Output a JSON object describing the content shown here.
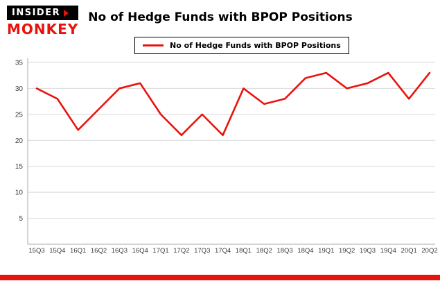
{
  "header": {
    "logo": {
      "top": "INSIDER",
      "bottom": "MONKEY"
    },
    "title": "No of Hedge Funds with BPOP Positions"
  },
  "legend": {
    "label": "No of Hedge Funds with BPOP Positions"
  },
  "colors": {
    "line": "#e8130c",
    "footer_bar": "#e8130c",
    "logo_red": "#e8130c",
    "grid": "#d9d9d9",
    "axis": "#aaaaaa",
    "tick_text": "#3c3c3c"
  },
  "chart_data": {
    "type": "line",
    "title": "No of Hedge Funds with BPOP Positions",
    "legend_entries": [
      "No of Hedge Funds with BPOP Positions"
    ],
    "legend_position": "top-center",
    "grid": true,
    "categories": [
      "15Q3",
      "15Q4",
      "16Q1",
      "16Q2",
      "16Q3",
      "16Q4",
      "17Q1",
      "17Q2",
      "17Q3",
      "17Q4",
      "18Q1",
      "18Q2",
      "18Q3",
      "18Q4",
      "19Q1",
      "19Q2",
      "19Q3",
      "19Q4",
      "20Q1",
      "20Q2"
    ],
    "values": [
      30,
      28,
      22,
      26,
      30,
      31,
      25,
      21,
      25,
      21,
      30,
      27,
      28,
      32,
      33,
      30,
      31,
      33,
      28,
      33
    ],
    "xlabel": "",
    "ylabel": "",
    "ylim": [
      0,
      35
    ],
    "yticks": [
      5,
      10,
      15,
      20,
      25,
      30,
      35
    ]
  }
}
